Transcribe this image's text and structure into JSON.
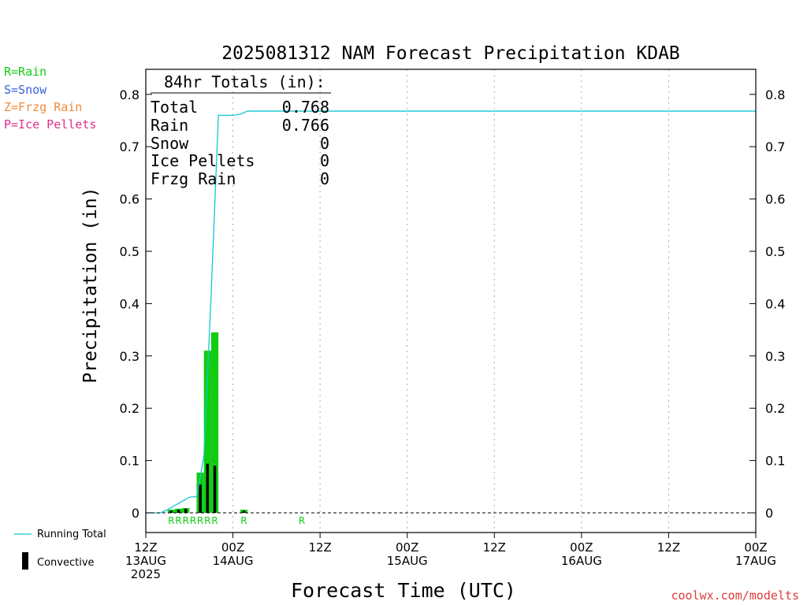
{
  "page": {
    "legend_types": [
      {
        "text": "R=Rain",
        "color": "#11cc11"
      },
      {
        "text": "S=Snow",
        "color": "#3a5fe0"
      },
      {
        "text": "Z=Frzg Rain",
        "color": "#f08a3a"
      },
      {
        "text": "P=Ice Pellets",
        "color": "#e0308a"
      }
    ],
    "legend_lines": [
      {
        "text": "Running Total",
        "icon": "cyan-line",
        "color": "#11c7d2"
      },
      {
        "text": "Convective",
        "icon": "black-bar",
        "color": "#000000"
      }
    ],
    "totals": {
      "heading": "84hr Totals (in):",
      "rows": [
        {
          "label": "Total",
          "value": "0.768"
        },
        {
          "label": "Rain",
          "value": "0.766"
        },
        {
          "label": "Snow",
          "value": "0"
        },
        {
          "label": "Ice Pellets",
          "value": "0"
        },
        {
          "label": "Frzg Rain",
          "value": "0"
        }
      ]
    },
    "credit": "coolwx.com/modelts",
    "colors": {
      "rain": "#11cc11",
      "convective": "#000000",
      "running_total": "#11c7d2",
      "grid": "#aaaaaa",
      "credit": "#e03a3a"
    }
  },
  "chart_data": {
    "type": "bar",
    "title": "2025081312 NAM Forecast Precipitation KDAB",
    "xlabel": "Forecast Time (UTC)",
    "ylabel": "Precipitation (in)",
    "ylim": [
      0,
      0.85
    ],
    "xlim_hours": [
      0,
      84
    ],
    "y_ticks": [
      "0",
      "0.1",
      "0.2",
      "0.3",
      "0.4",
      "0.5",
      "0.6",
      "0.7",
      "0.8"
    ],
    "x_ticks": [
      {
        "hour": 0,
        "lines": [
          "12Z",
          "13AUG",
          "2025"
        ]
      },
      {
        "hour": 12,
        "lines": [
          "00Z",
          "14AUG"
        ]
      },
      {
        "hour": 24,
        "lines": [
          "12Z"
        ]
      },
      {
        "hour": 36,
        "lines": [
          "00Z",
          "15AUG"
        ]
      },
      {
        "hour": 48,
        "lines": [
          "12Z"
        ]
      },
      {
        "hour": 60,
        "lines": [
          "00Z",
          "16AUG"
        ]
      },
      {
        "hour": 72,
        "lines": [
          "12Z"
        ]
      },
      {
        "hour": 84,
        "lines": [
          "00Z",
          "17AUG"
        ]
      }
    ],
    "grid": "vertical dotted",
    "series": [
      {
        "name": "Rain",
        "type": "bar",
        "x_hours": [
          4,
          5,
          6,
          8,
          9,
          10,
          14
        ],
        "values": [
          0.006,
          0.008,
          0.009,
          0.077,
          0.31,
          0.345,
          0.006
        ]
      },
      {
        "name": "Convective",
        "type": "bar",
        "x_hours": [
          4,
          5,
          6,
          8,
          9,
          10,
          14
        ],
        "values": [
          0.004,
          0.006,
          0.008,
          0.054,
          0.094,
          0.09,
          0.004
        ]
      },
      {
        "name": "Running Total",
        "type": "line",
        "x_hours": [
          0,
          1,
          2,
          3,
          4,
          5,
          6,
          7,
          8,
          9,
          10,
          11,
          12,
          13,
          14,
          15,
          84
        ],
        "values": [
          0,
          0,
          0,
          0.006,
          0.014,
          0.022,
          0.03,
          0.031,
          0.108,
          0.418,
          0.76,
          0.76,
          0.76,
          0.762,
          0.768,
          0.768,
          0.768
        ]
      }
    ],
    "precip_type_labels": [
      {
        "hour": 4,
        "text": "R"
      },
      {
        "hour": 5,
        "text": "R"
      },
      {
        "hour": 6,
        "text": "R"
      },
      {
        "hour": 7,
        "text": "R"
      },
      {
        "hour": 8,
        "text": "R"
      },
      {
        "hour": 9,
        "text": "R"
      },
      {
        "hour": 10,
        "text": "R"
      },
      {
        "hour": 14,
        "text": "R"
      },
      {
        "hour": 22,
        "text": "R"
      }
    ]
  }
}
